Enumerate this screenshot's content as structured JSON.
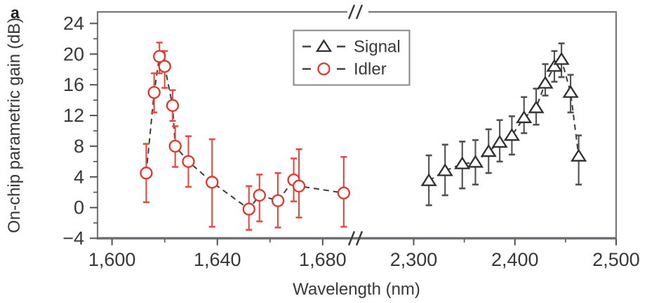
{
  "panel_label": "a",
  "axes": {
    "ylabel": "On-chip parametric gain (dB)",
    "xlabel": "Wavelength (nm)",
    "ylim": [
      -4,
      25.5
    ],
    "y_major_ticks": [
      -4,
      0,
      4,
      8,
      12,
      16,
      20,
      24
    ],
    "y_tick_labels": [
      "−4",
      "0",
      "4",
      "8",
      "12",
      "16",
      "20",
      "24"
    ],
    "y_minor_ticks": [
      -2,
      2,
      6,
      10,
      14,
      18,
      22
    ],
    "x_left": {
      "range": [
        1594.5,
        1690.7
      ],
      "major_ticks": [
        1600,
        1640,
        1680
      ],
      "labels": [
        "1,600",
        "1,640",
        "1,680"
      ],
      "minor_ticks": [
        1620,
        1660
      ]
    },
    "x_right": {
      "range": [
        2252.5,
        2500
      ],
      "major_ticks": [
        2300,
        2400,
        2500
      ],
      "labels": [
        "2,300",
        "2,400",
        "2,500"
      ],
      "minor_ticks": [
        2350,
        2450
      ]
    },
    "axis_break": true
  },
  "colors": {
    "axis": "#77787b",
    "axis_bottom": "#6f7073",
    "tick": "#515154",
    "dashed_line": "#3b3b3e",
    "signal": "#2f2f31",
    "signal_error": "#515154",
    "idler": "#e4352b",
    "idler_error": "#e84a3f",
    "legend_border": "#87878a",
    "break_mark": "#38383a"
  },
  "chart_data": {
    "type": "scatter",
    "title": "",
    "xlabel": "Wavelength (nm)",
    "ylabel": "On-chip parametric gain (dB)",
    "ylim": [
      -4,
      25.5
    ],
    "grid": false,
    "legend_position": "top-center",
    "x_axis_break_between": [
      1691,
      2252
    ],
    "point_format": [
      "wavelength_nm",
      "gain_db",
      "err_low_db",
      "err_high_db"
    ],
    "series": [
      {
        "name": "Signal",
        "marker": "triangle",
        "color": "#2f2f31",
        "error_color": "#515154",
        "line_style": "dashed",
        "points": [
          [
            2315,
            3.5,
            0.3,
            6.8
          ],
          [
            2331,
            4.8,
            1.6,
            8.2
          ],
          [
            2348,
            5.7,
            2.5,
            8.6
          ],
          [
            2361,
            5.9,
            3.0,
            8.8
          ],
          [
            2374,
            7.3,
            4.5,
            10.2
          ],
          [
            2385,
            8.5,
            6.0,
            11.4
          ],
          [
            2397,
            9.4,
            6.9,
            11.9
          ],
          [
            2409,
            11.7,
            9.7,
            14.4
          ],
          [
            2421,
            13.0,
            10.8,
            15.5
          ],
          [
            2430,
            16.2,
            14.6,
            18.7
          ],
          [
            2439,
            18.4,
            16.4,
            20.4
          ],
          [
            2446,
            19.3,
            17.0,
            21.4
          ],
          [
            2455,
            15.0,
            12.4,
            17.3
          ],
          [
            2463,
            6.7,
            3.0,
            9.4
          ]
        ]
      },
      {
        "name": "Idler",
        "marker": "circle",
        "color": "#e4352b",
        "error_color": "#e84a3f",
        "line_style": "dashed",
        "points": [
          [
            1613,
            4.5,
            0.7,
            8.3
          ],
          [
            1616,
            15.0,
            12.4,
            17.5
          ],
          [
            1618,
            19.7,
            17.5,
            21.5
          ],
          [
            1620,
            18.4,
            15.6,
            20.4
          ],
          [
            1623,
            13.3,
            11.3,
            15.3
          ],
          [
            1624,
            8.0,
            5.3,
            10.6
          ],
          [
            1629,
            6.0,
            2.7,
            9.3
          ],
          [
            1638,
            3.3,
            -2.5,
            8.9
          ],
          [
            1652,
            -0.2,
            -2.9,
            2.8
          ],
          [
            1656,
            1.6,
            -1.8,
            4.3
          ],
          [
            1663,
            0.9,
            -2.6,
            4.5
          ],
          [
            1669,
            3.6,
            0.8,
            6.4
          ],
          [
            1671,
            2.8,
            -1.3,
            7.6
          ],
          [
            1688,
            1.9,
            -2.5,
            6.6
          ]
        ]
      }
    ]
  }
}
